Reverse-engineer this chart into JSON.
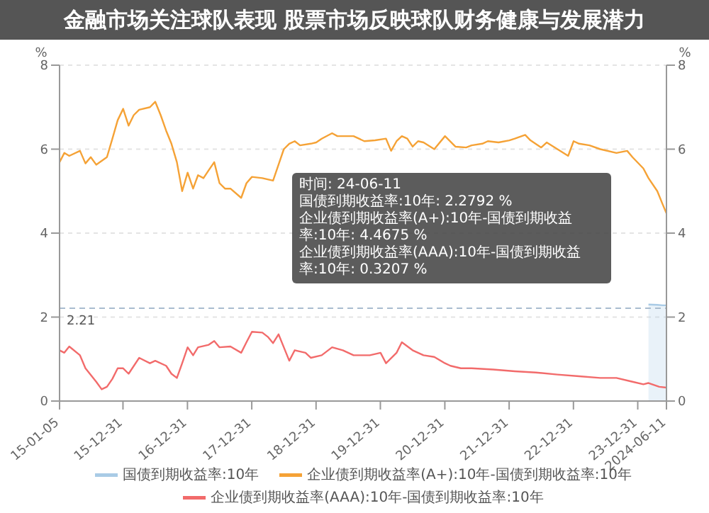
{
  "chart_data": {
    "type": "line",
    "title": "金融市场关注球队表现 股票市场反映球队财务健康与发展潜力",
    "ylabel": "%",
    "y2label": "%",
    "xlim": [
      "2015-01-05",
      "2024-06-11"
    ],
    "xticks": [
      {
        "value": "2015-01-05",
        "label": "15-01-05"
      },
      {
        "value": "2015-12-31",
        "label": "15-12-31"
      },
      {
        "value": "2016-12-31",
        "label": "16-12-31"
      },
      {
        "value": "2017-12-31",
        "label": "17-12-31"
      },
      {
        "value": "2018-12-31",
        "label": "18-12-31"
      },
      {
        "value": "2019-12-31",
        "label": "19-12-31"
      },
      {
        "value": "2020-12-31",
        "label": "20-12-31"
      },
      {
        "value": "2021-12-31",
        "label": "21-12-31"
      },
      {
        "value": "2022-12-31",
        "label": "22-12-31"
      },
      {
        "value": "2023-12-31",
        "label": "23-12-31"
      },
      {
        "value": "2024-06-11",
        "label": "2024-06-11"
      }
    ],
    "ylim": [
      0,
      8
    ],
    "yticks": [
      0,
      2,
      4,
      6,
      8
    ],
    "y2lim": [
      0,
      8
    ],
    "y2ticks": [
      0,
      2,
      4,
      6,
      8
    ],
    "grid": "y",
    "legend": "bottom",
    "marker": "none",
    "ref_lines": [
      {
        "axis": "y",
        "value": 2.21,
        "label": "2.21",
        "color": "#a9bccf",
        "line_style": "dashed"
      }
    ],
    "series": [
      {
        "name": "国债到期收益率:10年",
        "type": "area",
        "color": "#a9cbe6",
        "x": [
          "2024-03",
          "2024-04-20",
          "2024-05-20",
          "2024-06-11"
        ],
        "values": [
          2.3,
          2.29,
          2.28,
          2.28
        ]
      },
      {
        "name": "企业债到期收益率(A+):10年-国债到期收益率:10年",
        "color": "#f5a236",
        "x": [
          "2015-01-05",
          "2015-02",
          "2015-03",
          "2015-05",
          "2015-06",
          "2015-07",
          "2015-08",
          "2015-10",
          "2015-11",
          "2015-12",
          "2016-01",
          "2016-02",
          "2016-03",
          "2016-04",
          "2016-06",
          "2016-07",
          "2016-08",
          "2016-09",
          "2016-10",
          "2016-11",
          "2016-12",
          "2017-01",
          "2017-02",
          "2017-03",
          "2017-04",
          "2017-05",
          "2017-06",
          "2017-07",
          "2017-08",
          "2017-09",
          "2017-11",
          "2017-12",
          "2018-01",
          "2018-03",
          "2018-05",
          "2018-06",
          "2018-07",
          "2018-08",
          "2018-09",
          "2018-10",
          "2018-12",
          "2019-01",
          "2019-02",
          "2019-04",
          "2019-05",
          "2019-07",
          "2019-08",
          "2019-10",
          "2019-12",
          "2020-02",
          "2020-03",
          "2020-04",
          "2020-05",
          "2020-06",
          "2020-07",
          "2020-08",
          "2020-09",
          "2020-11",
          "2021-01",
          "2021-03",
          "2021-05",
          "2021-06",
          "2021-08",
          "2021-09",
          "2021-11",
          "2022-01",
          "2022-02",
          "2022-04",
          "2022-05",
          "2022-07",
          "2022-08",
          "2022-10",
          "2022-12",
          "2023-01",
          "2023-02",
          "2023-04",
          "2023-06",
          "2023-09",
          "2023-11",
          "2023-12",
          "2024-02",
          "2024-03",
          "2024-04-20",
          "2024-05-20",
          "2024-06-11"
        ],
        "values": [
          5.69,
          5.91,
          5.84,
          5.96,
          5.66,
          5.81,
          5.63,
          5.81,
          6.25,
          6.69,
          6.96,
          6.56,
          6.81,
          6.94,
          7.0,
          7.13,
          6.81,
          6.44,
          6.13,
          5.69,
          5.0,
          5.44,
          5.06,
          5.38,
          5.31,
          5.5,
          5.69,
          5.19,
          5.06,
          5.06,
          4.84,
          5.19,
          5.34,
          5.31,
          5.25,
          5.63,
          6.0,
          6.13,
          6.19,
          6.09,
          6.13,
          6.16,
          6.25,
          6.38,
          6.31,
          6.31,
          6.31,
          6.19,
          6.21,
          6.25,
          5.96,
          6.19,
          6.31,
          6.25,
          6.06,
          6.19,
          6.16,
          6.0,
          6.31,
          6.06,
          6.04,
          6.09,
          6.13,
          6.19,
          6.16,
          6.21,
          6.25,
          6.34,
          6.21,
          6.04,
          6.16,
          6.0,
          5.84,
          6.19,
          6.13,
          6.09,
          6.0,
          5.91,
          5.96,
          5.81,
          5.54,
          5.31,
          5.0,
          4.69,
          4.47
        ]
      },
      {
        "name": "企业债到期收益率(AAA):10年-国债到期收益率:10年",
        "color": "#f26b6b",
        "x": [
          "2015-01-05",
          "2015-02",
          "2015-03",
          "2015-05",
          "2015-06",
          "2015-08",
          "2015-09",
          "2015-10",
          "2015-11",
          "2015-12",
          "2016-01",
          "2016-02",
          "2016-04",
          "2016-06",
          "2016-07",
          "2016-09",
          "2016-10",
          "2016-11",
          "2016-12",
          "2017-01",
          "2017-02",
          "2017-03",
          "2017-05",
          "2017-06",
          "2017-07",
          "2017-09",
          "2017-11",
          "2017-12",
          "2018-01",
          "2018-03",
          "2018-04",
          "2018-05",
          "2018-06",
          "2018-07",
          "2018-08",
          "2018-09",
          "2018-11",
          "2018-12",
          "2019-02",
          "2019-04",
          "2019-06",
          "2019-08",
          "2019-11",
          "2020-01",
          "2020-02",
          "2020-04",
          "2020-05",
          "2020-07",
          "2020-09",
          "2020-11",
          "2021-01",
          "2021-02",
          "2021-04",
          "2021-06",
          "2021-10",
          "2022-02",
          "2022-06",
          "2022-10",
          "2023-02",
          "2023-06",
          "2023-09",
          "2023-12",
          "2024-02",
          "2024-03",
          "2024-05",
          "2024-06-11"
        ],
        "values": [
          1.21,
          1.15,
          1.3,
          1.09,
          0.78,
          0.46,
          0.28,
          0.34,
          0.53,
          0.78,
          0.78,
          0.65,
          1.03,
          0.9,
          0.96,
          0.84,
          0.65,
          0.55,
          0.9,
          1.28,
          1.09,
          1.28,
          1.34,
          1.43,
          1.28,
          1.3,
          1.15,
          1.4,
          1.65,
          1.63,
          1.53,
          1.38,
          1.59,
          1.28,
          0.96,
          1.21,
          1.15,
          1.03,
          1.09,
          1.28,
          1.21,
          1.09,
          1.09,
          1.15,
          0.9,
          1.15,
          1.4,
          1.21,
          1.09,
          1.05,
          0.9,
          0.84,
          0.78,
          0.78,
          0.75,
          0.71,
          0.68,
          0.63,
          0.59,
          0.55,
          0.55,
          0.46,
          0.4,
          0.43,
          0.34,
          0.32
        ]
      }
    ],
    "annotations": [
      "时间: 24-06-11",
      "国债到期收益率:10年: 2.2792 %",
      "企业债到期收益率(A+):10年-国债到期收益率:10年: 4.4675 %",
      "企业债到期收益率(AAA):10年-国债到期收益率:10年: 0.3207 %"
    ]
  }
}
